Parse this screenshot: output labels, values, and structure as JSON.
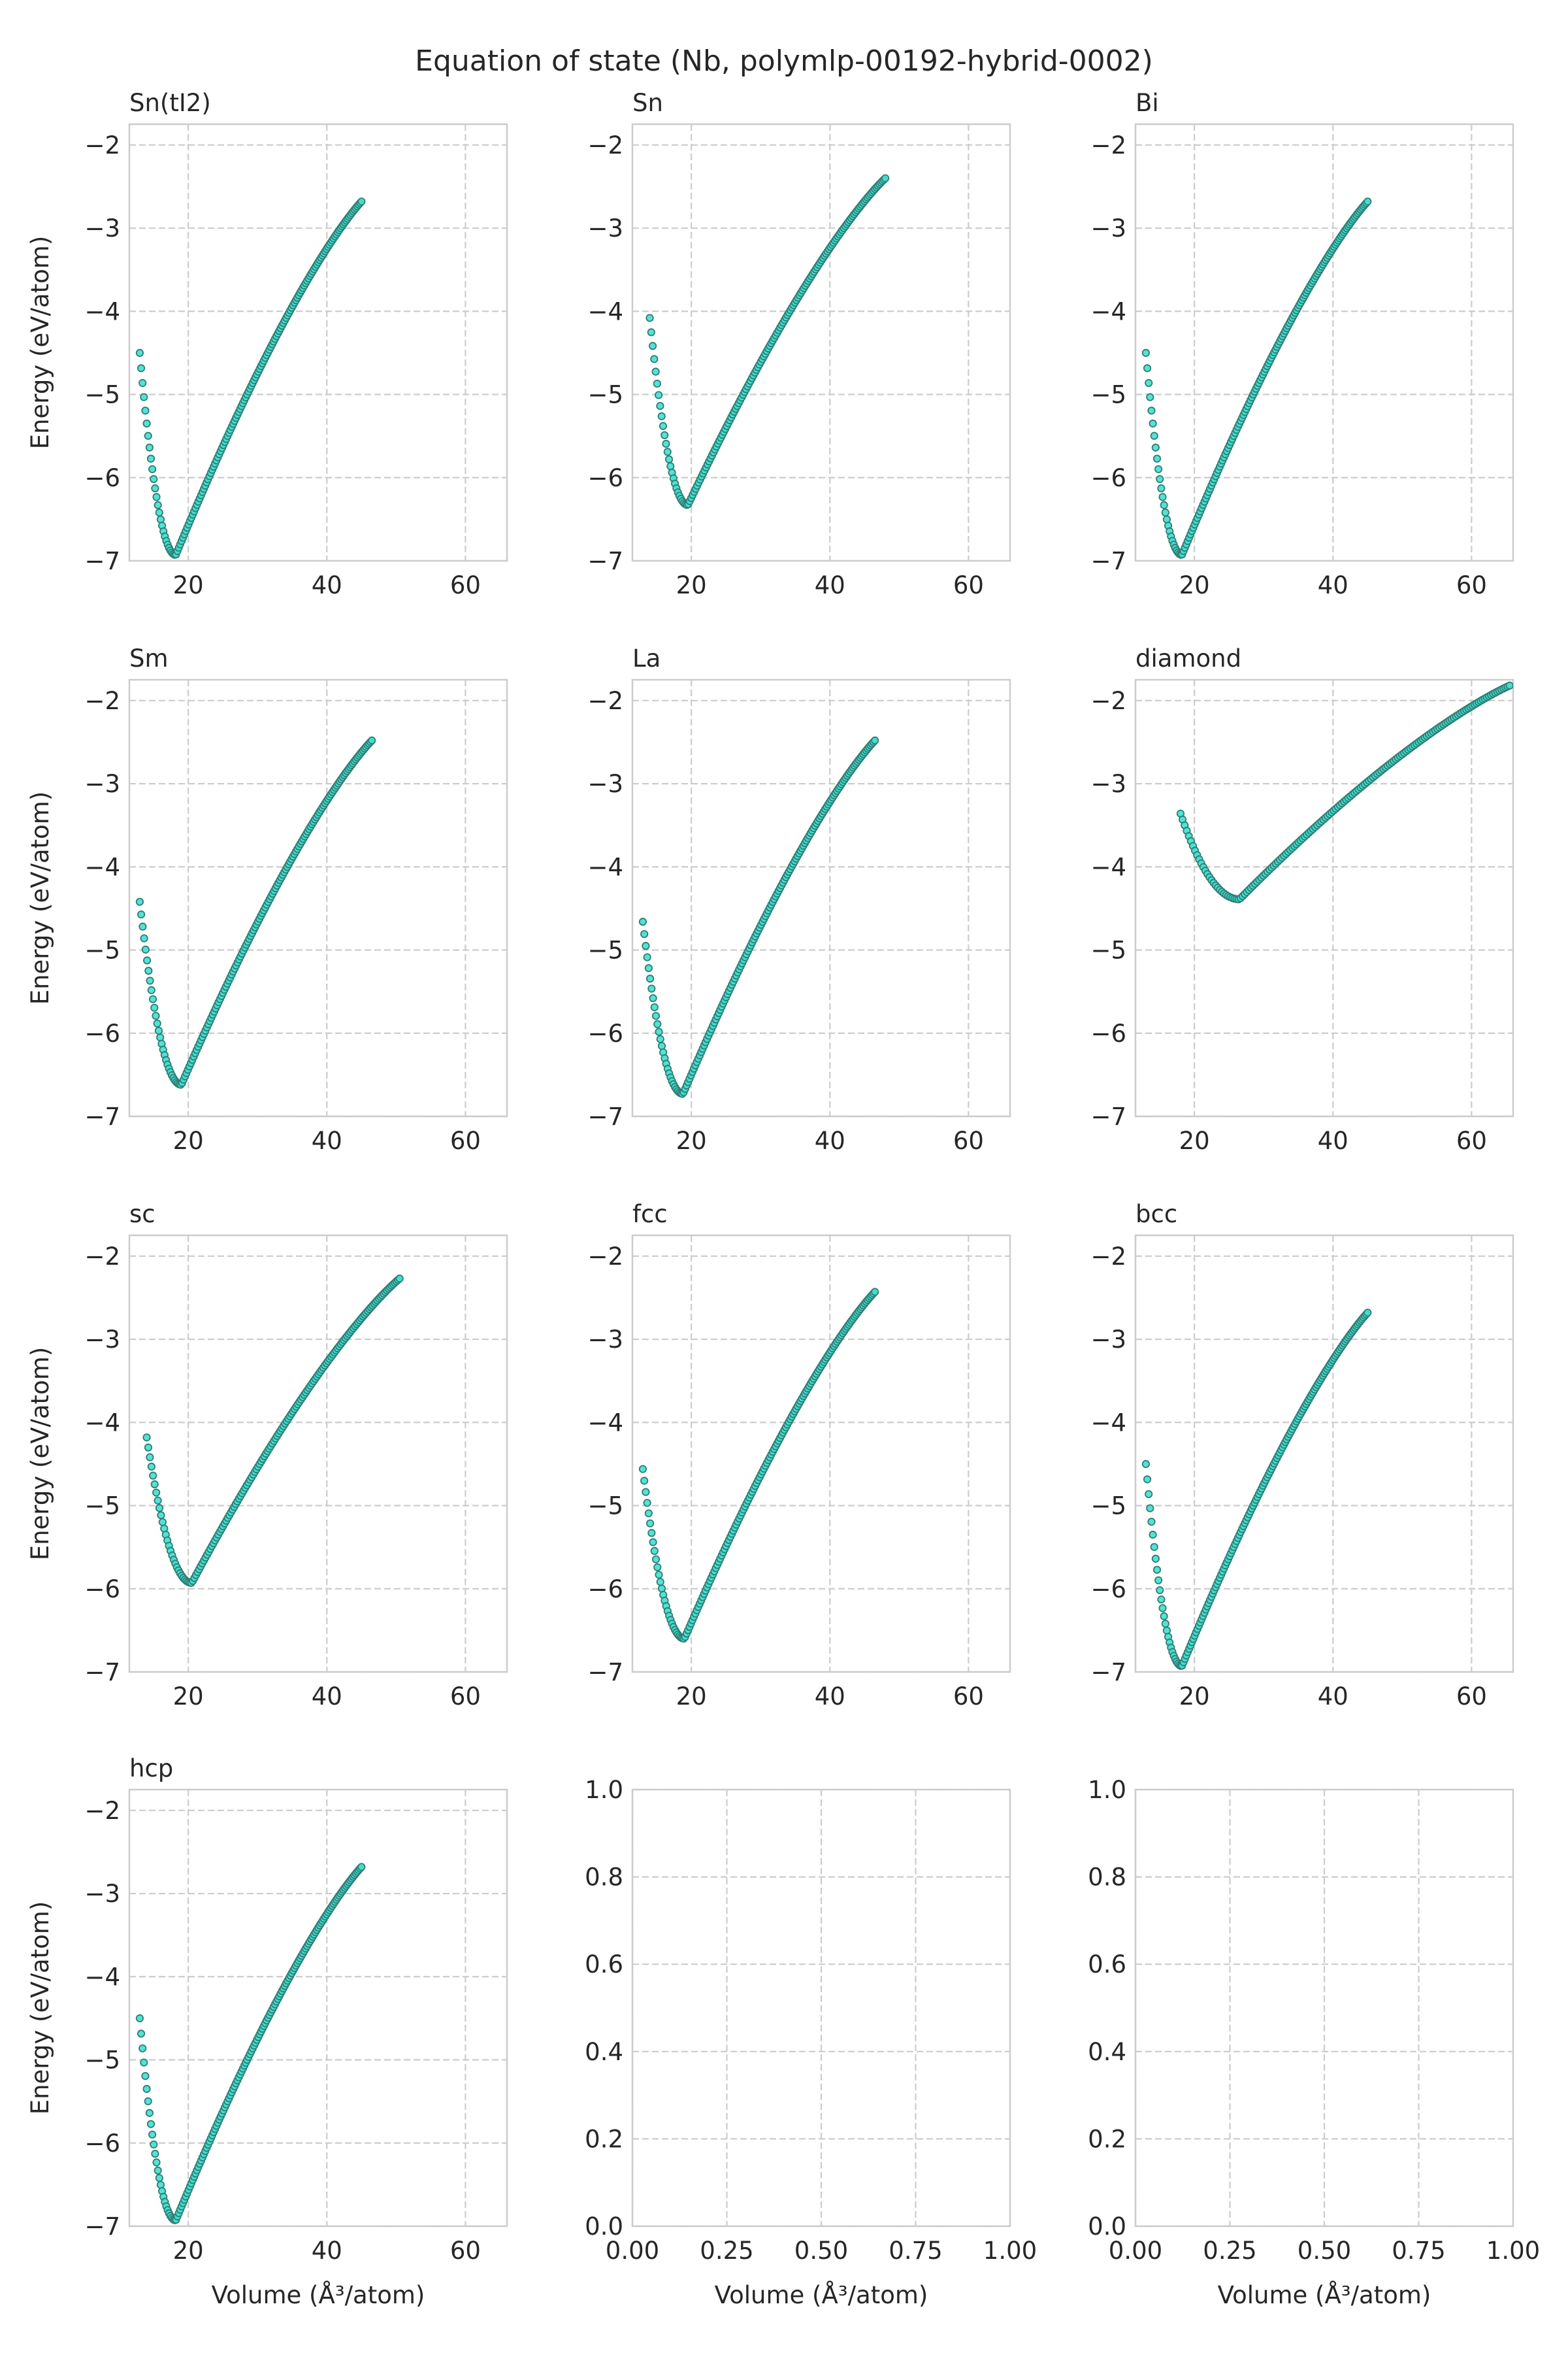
{
  "title": "Equation of state (Nb, polymlp-00192-hybrid-0002)",
  "xlabel": "Volume (Å³/atom)",
  "ylabel": "Energy (eV/atom)",
  "colors": {
    "marker_fill": "#40e0d0",
    "marker_edge": "#2e7d74",
    "grid": "#cccccc",
    "frame": "#cccccc"
  },
  "chart_data": [
    {
      "type": "scatter",
      "title": "Sn(tI2)",
      "xlim": [
        11.5,
        66
      ],
      "ylim": [
        -7,
        -1.75
      ],
      "xticks": [
        20,
        40,
        60
      ],
      "yticks": [
        -7,
        -6,
        -5,
        -4,
        -3,
        -2
      ],
      "curve": {
        "v_start": 13,
        "v_end": 45,
        "v0": 18.2,
        "e0": -6.93,
        "e_start": -4.5,
        "e_end": -2.68
      }
    },
    {
      "type": "scatter",
      "title": "Sn",
      "xlim": [
        11.5,
        66
      ],
      "ylim": [
        -7,
        -1.75
      ],
      "xticks": [
        20,
        40,
        60
      ],
      "yticks": [
        -7,
        -6,
        -5,
        -4,
        -3,
        -2
      ],
      "curve": {
        "v_start": 14,
        "v_end": 48,
        "v0": 19.5,
        "e0": -6.33,
        "e_start": -4.08,
        "e_end": -2.4
      }
    },
    {
      "type": "scatter",
      "title": "Bi",
      "xlim": [
        11.5,
        66
      ],
      "ylim": [
        -7,
        -1.75
      ],
      "xticks": [
        20,
        40,
        60
      ],
      "yticks": [
        -7,
        -6,
        -5,
        -4,
        -3,
        -2
      ],
      "curve": {
        "v_start": 13,
        "v_end": 45,
        "v0": 18.2,
        "e0": -6.93,
        "e_start": -4.5,
        "e_end": -2.68
      }
    },
    {
      "type": "scatter",
      "title": "Sm",
      "xlim": [
        11.5,
        66
      ],
      "ylim": [
        -7,
        -1.75
      ],
      "xticks": [
        20,
        40,
        60
      ],
      "yticks": [
        -7,
        -6,
        -5,
        -4,
        -3,
        -2
      ],
      "curve": {
        "v_start": 13,
        "v_end": 46.5,
        "v0": 19.0,
        "e0": -6.62,
        "e_start": -4.42,
        "e_end": -2.48
      }
    },
    {
      "type": "scatter",
      "title": "La",
      "xlim": [
        11.5,
        66
      ],
      "ylim": [
        -7,
        -1.75
      ],
      "xticks": [
        20,
        40,
        60
      ],
      "yticks": [
        -7,
        -6,
        -5,
        -4,
        -3,
        -2
      ],
      "curve": {
        "v_start": 13,
        "v_end": 46.5,
        "v0": 18.8,
        "e0": -6.73,
        "e_start": -4.66,
        "e_end": -2.48
      }
    },
    {
      "type": "scatter",
      "title": "diamond",
      "xlim": [
        11.5,
        66
      ],
      "ylim": [
        -7,
        -1.75
      ],
      "xticks": [
        20,
        40,
        60
      ],
      "yticks": [
        -7,
        -6,
        -5,
        -4,
        -3,
        -2
      ],
      "curve": {
        "v_start": 18,
        "v_end": 65.5,
        "v0": 26.5,
        "e0": -4.39,
        "e_start": -3.36,
        "e_end": -1.82
      }
    },
    {
      "type": "scatter",
      "title": "sc",
      "xlim": [
        11.5,
        66
      ],
      "ylim": [
        -7,
        -1.75
      ],
      "xticks": [
        20,
        40,
        60
      ],
      "yticks": [
        -7,
        -6,
        -5,
        -4,
        -3,
        -2
      ],
      "curve": {
        "v_start": 14,
        "v_end": 50.5,
        "v0": 20.5,
        "e0": -5.93,
        "e_start": -4.18,
        "e_end": -2.27
      }
    },
    {
      "type": "scatter",
      "title": "fcc",
      "xlim": [
        11.5,
        66
      ],
      "ylim": [
        -7,
        -1.75
      ],
      "xticks": [
        20,
        40,
        60
      ],
      "yticks": [
        -7,
        -6,
        -5,
        -4,
        -3,
        -2
      ],
      "curve": {
        "v_start": 13,
        "v_end": 46.5,
        "v0": 19.0,
        "e0": -6.6,
        "e_start": -4.56,
        "e_end": -2.43
      }
    },
    {
      "type": "scatter",
      "title": "bcc",
      "xlim": [
        11.5,
        66
      ],
      "ylim": [
        -7,
        -1.75
      ],
      "xticks": [
        20,
        40,
        60
      ],
      "yticks": [
        -7,
        -6,
        -5,
        -4,
        -3,
        -2
      ],
      "curve": {
        "v_start": 13,
        "v_end": 45,
        "v0": 18.2,
        "e0": -6.93,
        "e_start": -4.5,
        "e_end": -2.68
      }
    },
    {
      "type": "scatter",
      "title": "hcp",
      "xlim": [
        11.5,
        66
      ],
      "ylim": [
        -7,
        -1.75
      ],
      "xticks": [
        20,
        40,
        60
      ],
      "yticks": [
        -7,
        -6,
        -5,
        -4,
        -3,
        -2
      ],
      "curve": {
        "v_start": 13,
        "v_end": 45,
        "v0": 18.2,
        "e0": -6.93,
        "e_start": -4.5,
        "e_end": -2.68
      }
    },
    {
      "type": "scatter",
      "title": "",
      "empty": true,
      "xlim": [
        0,
        1
      ],
      "ylim": [
        0,
        1
      ],
      "xticks": [
        0.0,
        0.25,
        0.5,
        0.75,
        1.0
      ],
      "yticks": [
        0.0,
        0.2,
        0.4,
        0.6,
        0.8,
        1.0
      ],
      "xticklabels": [
        "0.00",
        "0.25",
        "0.50",
        "0.75",
        "1.00"
      ],
      "yticklabels": [
        "0.0",
        "0.2",
        "0.4",
        "0.6",
        "0.8",
        "1.0"
      ]
    },
    {
      "type": "scatter",
      "title": "",
      "empty": true,
      "xlim": [
        0,
        1
      ],
      "ylim": [
        0,
        1
      ],
      "xticks": [
        0.0,
        0.25,
        0.5,
        0.75,
        1.0
      ],
      "yticks": [
        0.0,
        0.2,
        0.4,
        0.6,
        0.8,
        1.0
      ],
      "xticklabels": [
        "0.00",
        "0.25",
        "0.50",
        "0.75",
        "1.00"
      ],
      "yticklabels": [
        "0.0",
        "0.2",
        "0.4",
        "0.6",
        "0.8",
        "1.0"
      ]
    }
  ]
}
